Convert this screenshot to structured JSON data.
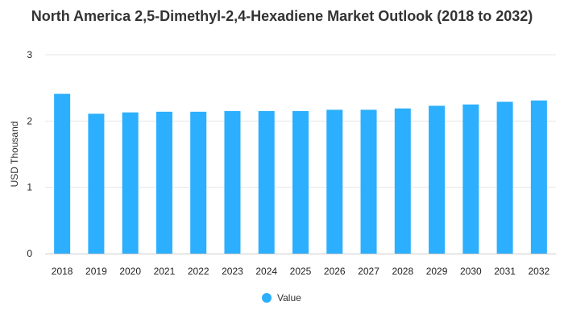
{
  "chart_data": {
    "type": "bar",
    "title": "North America 2,5-Dimethyl-2,4-Hexadiene Market Outlook (2018 to 2032)",
    "xlabel": "",
    "ylabel": "USD Thousand",
    "categories": [
      "2018",
      "2019",
      "2020",
      "2021",
      "2022",
      "2023",
      "2024",
      "2025",
      "2026",
      "2027",
      "2028",
      "2029",
      "2030",
      "2031",
      "2032"
    ],
    "series": [
      {
        "name": "Value",
        "values": [
          2.41,
          2.11,
          2.13,
          2.14,
          2.14,
          2.15,
          2.15,
          2.15,
          2.17,
          2.17,
          2.19,
          2.23,
          2.25,
          2.29,
          2.31
        ]
      }
    ],
    "ylim": [
      0,
      3
    ],
    "yticks": [
      "0",
      "1",
      "2",
      "3"
    ],
    "grid": true,
    "legend": "bottom-center",
    "colors": {
      "bar": "#2CAFFE",
      "grid": "#e6e6e6",
      "axis": "#cccccc"
    }
  }
}
